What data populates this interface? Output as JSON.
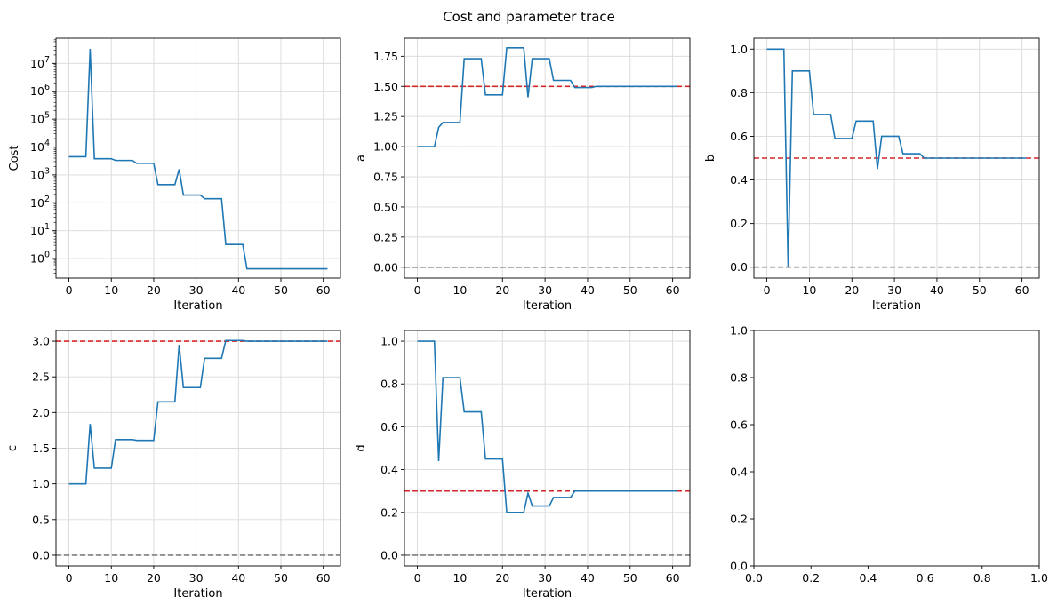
{
  "figure": {
    "title": "Cost and parameter trace"
  },
  "chart_data": [
    {
      "id": "cost",
      "type": "line",
      "xlabel": "Iteration",
      "ylabel": "Cost",
      "yscale": "log",
      "xlim": [
        -3.05,
        64.05
      ],
      "ylim": [
        0.2,
        80000000
      ],
      "xticks": [
        0,
        10,
        20,
        30,
        40,
        50,
        60
      ],
      "xtick_labels": [
        "0",
        "10",
        "20",
        "30",
        "40",
        "50",
        "60"
      ],
      "yticks": [
        1,
        10,
        100,
        1000,
        10000,
        100000,
        1000000,
        10000000
      ],
      "ytick_labels": [
        "10^0",
        "10^1",
        "10^2",
        "10^3",
        "10^4",
        "10^5",
        "10^6",
        "10^7"
      ],
      "grid": true,
      "series": [
        {
          "color": "#1f77b4",
          "x": [
            0,
            4,
            5,
            6,
            10,
            11,
            15,
            16,
            20,
            21,
            25,
            26,
            27,
            31,
            32,
            36,
            37,
            41,
            42,
            61
          ],
          "y": [
            4500,
            4500,
            33000000,
            3800,
            3800,
            3300,
            3300,
            2600,
            2600,
            450,
            450,
            1600,
            190,
            190,
            140,
            140,
            3.2,
            3.2,
            0.43,
            0.43
          ]
        }
      ]
    },
    {
      "id": "a",
      "type": "line",
      "xlabel": "Iteration",
      "ylabel": "a",
      "xlim": [
        -3.05,
        64.05
      ],
      "ylim": [
        -0.09,
        1.9
      ],
      "xticks": [
        0,
        10,
        20,
        30,
        40,
        50,
        60
      ],
      "xtick_labels": [
        "0",
        "10",
        "20",
        "30",
        "40",
        "50",
        "60"
      ],
      "yticks": [
        0,
        0.25,
        0.5,
        0.75,
        1.0,
        1.25,
        1.5,
        1.75
      ],
      "ytick_labels": [
        "0.00",
        "0.25",
        "0.50",
        "0.75",
        "1.00",
        "1.25",
        "1.50",
        "1.75"
      ],
      "grid": true,
      "hlines": [
        {
          "y": 1.5,
          "color": "#d62728"
        },
        {
          "y": 0,
          "color": "#7f7f7f"
        }
      ],
      "series": [
        {
          "color": "#1f77b4",
          "x": [
            0,
            4,
            5,
            6,
            10,
            11,
            15,
            16,
            20,
            21,
            25,
            26,
            27,
            31,
            32,
            36,
            37,
            41,
            42,
            61
          ],
          "y": [
            1.0,
            1.0,
            1.16,
            1.2,
            1.2,
            1.73,
            1.73,
            1.43,
            1.43,
            1.82,
            1.82,
            1.41,
            1.73,
            1.73,
            1.55,
            1.55,
            1.49,
            1.49,
            1.5,
            1.5
          ]
        }
      ]
    },
    {
      "id": "b",
      "type": "line",
      "xlabel": "Iteration",
      "ylabel": "b",
      "xlim": [
        -3.05,
        64.05
      ],
      "ylim": [
        -0.05,
        1.05
      ],
      "xticks": [
        0,
        10,
        20,
        30,
        40,
        50,
        60
      ],
      "xtick_labels": [
        "0",
        "10",
        "20",
        "30",
        "40",
        "50",
        "60"
      ],
      "yticks": [
        0,
        0.2,
        0.4,
        0.6,
        0.8,
        1.0
      ],
      "ytick_labels": [
        "0.0",
        "0.2",
        "0.4",
        "0.6",
        "0.8",
        "1.0"
      ],
      "grid": true,
      "hlines": [
        {
          "y": 0.5,
          "color": "#d62728"
        },
        {
          "y": 0,
          "color": "#7f7f7f"
        }
      ],
      "series": [
        {
          "color": "#1f77b4",
          "x": [
            0,
            4,
            5,
            6,
            10,
            11,
            15,
            16,
            20,
            21,
            25,
            26,
            27,
            31,
            32,
            36,
            37,
            41,
            42,
            61
          ],
          "y": [
            1.0,
            1.0,
            0.0,
            0.9,
            0.9,
            0.7,
            0.7,
            0.59,
            0.59,
            0.67,
            0.67,
            0.45,
            0.6,
            0.6,
            0.52,
            0.52,
            0.5,
            0.5,
            0.5,
            0.5
          ]
        }
      ]
    },
    {
      "id": "c",
      "type": "line",
      "xlabel": "Iteration",
      "ylabel": "c",
      "xlim": [
        -3.05,
        64.05
      ],
      "ylim": [
        -0.15,
        3.15
      ],
      "xticks": [
        0,
        10,
        20,
        30,
        40,
        50,
        60
      ],
      "xtick_labels": [
        "0",
        "10",
        "20",
        "30",
        "40",
        "50",
        "60"
      ],
      "yticks": [
        0,
        0.5,
        1.0,
        1.5,
        2.0,
        2.5,
        3.0
      ],
      "ytick_labels": [
        "0.0",
        "0.5",
        "1.0",
        "1.5",
        "2.0",
        "2.5",
        "3.0"
      ],
      "grid": true,
      "hlines": [
        {
          "y": 3.0,
          "color": "#d62728"
        },
        {
          "y": 0,
          "color": "#7f7f7f"
        }
      ],
      "series": [
        {
          "color": "#1f77b4",
          "x": [
            0,
            4,
            5,
            6,
            10,
            11,
            15,
            16,
            20,
            21,
            25,
            26,
            27,
            31,
            32,
            36,
            37,
            41,
            42,
            61
          ],
          "y": [
            1.0,
            1.0,
            1.84,
            1.22,
            1.22,
            1.62,
            1.62,
            1.61,
            1.61,
            2.15,
            2.15,
            2.95,
            2.35,
            2.35,
            2.76,
            2.76,
            3.01,
            3.01,
            3.0,
            3.0
          ]
        }
      ]
    },
    {
      "id": "d",
      "type": "line",
      "xlabel": "Iteration",
      "ylabel": "d",
      "xlim": [
        -3.05,
        64.05
      ],
      "ylim": [
        -0.05,
        1.05
      ],
      "xticks": [
        0,
        10,
        20,
        30,
        40,
        50,
        60
      ],
      "xtick_labels": [
        "0",
        "10",
        "20",
        "30",
        "40",
        "50",
        "60"
      ],
      "yticks": [
        0,
        0.2,
        0.4,
        0.6,
        0.8,
        1.0
      ],
      "ytick_labels": [
        "0.0",
        "0.2",
        "0.4",
        "0.6",
        "0.8",
        "1.0"
      ],
      "grid": true,
      "hlines": [
        {
          "y": 0.3,
          "color": "#d62728"
        },
        {
          "y": 0,
          "color": "#7f7f7f"
        }
      ],
      "series": [
        {
          "color": "#1f77b4",
          "x": [
            0,
            4,
            5,
            6,
            10,
            11,
            15,
            16,
            20,
            21,
            25,
            26,
            27,
            31,
            32,
            36,
            37,
            41,
            42,
            61
          ],
          "y": [
            1.0,
            1.0,
            0.44,
            0.83,
            0.83,
            0.67,
            0.67,
            0.45,
            0.45,
            0.2,
            0.2,
            0.29,
            0.23,
            0.23,
            0.27,
            0.27,
            0.3,
            0.3,
            0.3,
            0.3
          ]
        }
      ]
    },
    {
      "id": "empty",
      "type": "line",
      "xlabel": "",
      "ylabel": "",
      "xlim": [
        0,
        1
      ],
      "ylim": [
        0,
        1
      ],
      "xticks": [
        0,
        0.2,
        0.4,
        0.6,
        0.8,
        1.0
      ],
      "xtick_labels": [
        "0.0",
        "0.2",
        "0.4",
        "0.6",
        "0.8",
        "1.0"
      ],
      "yticks": [
        0,
        0.2,
        0.4,
        0.6,
        0.8,
        1.0
      ],
      "ytick_labels": [
        "0.0",
        "0.2",
        "0.4",
        "0.6",
        "0.8",
        "1.0"
      ],
      "grid": false,
      "series": []
    }
  ]
}
